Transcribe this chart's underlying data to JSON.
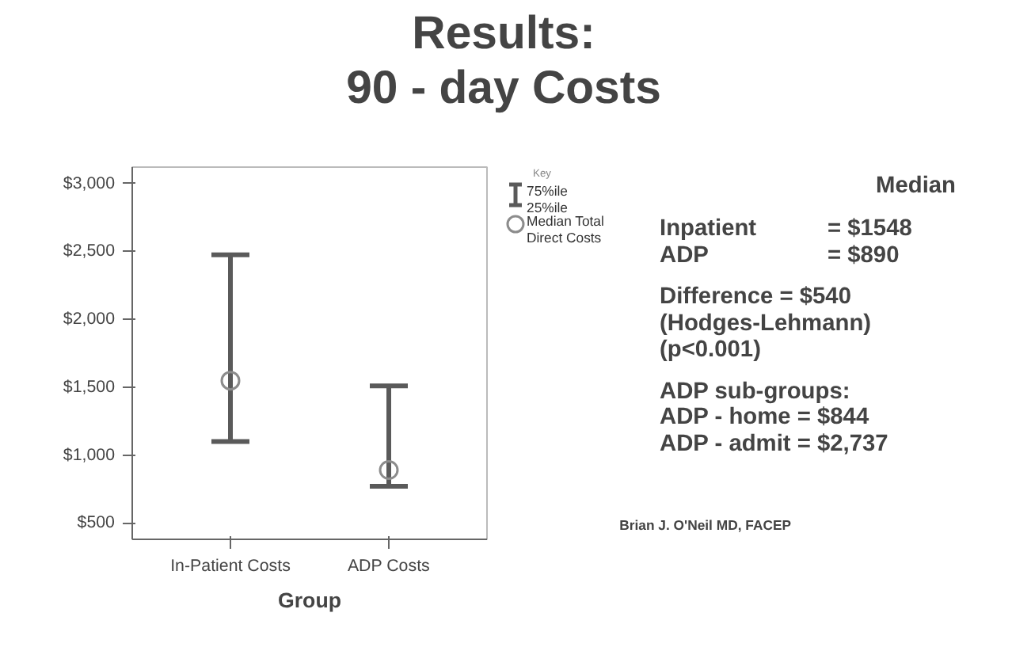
{
  "chart_data": {
    "type": "scatter",
    "title": "Results:\n90 - day Costs",
    "xlabel": "Group",
    "legend_title": "Key",
    "categories": [
      "In-Patient Costs",
      "ADP Costs"
    ],
    "series": [
      {
        "name": "Median Total Direct Costs",
        "color": "#8c8c8c",
        "values": [
          1548,
          890
        ],
        "errors": [
          [
            1100,
            2475
          ],
          [
            770,
            1510
          ]
        ]
      }
    ],
    "ylim": [
      380,
      3120
    ],
    "yticks": [
      {
        "value": 500,
        "label": "$500"
      },
      {
        "value": 1000,
        "label": "$1,000"
      },
      {
        "value": 1500,
        "label": "$1,500"
      },
      {
        "value": 2000,
        "label": "$2,000"
      },
      {
        "value": 2500,
        "label": "$2,500"
      },
      {
        "value": 3000,
        "label": "$3,000"
      }
    ],
    "marker": "circle",
    "grid": false,
    "legend": "right",
    "annotations": [
      "75%ile\n25%ile",
      "Median",
      "Inpatient\nADP",
      "= $1548\n= $890",
      "Difference    = $540\n(Hodges-Lehmann)\n(p<0.001)",
      "ADP sub-groups:",
      "ADP - home = $844\nADP - admit = $2,737",
      "Brian J. O'Neil MD, FACEP"
    ]
  }
}
